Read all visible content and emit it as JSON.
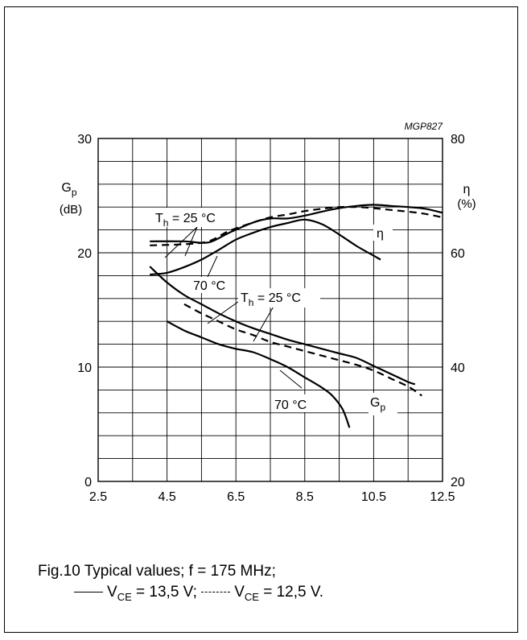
{
  "chart_data": {
    "type": "line",
    "figure_code": "MGP827",
    "grid": true,
    "x": {
      "range": [
        2.5,
        12.5
      ],
      "ticks": [
        "2.5",
        "4.5",
        "6.5",
        "8.5",
        "10.5",
        "12.5"
      ]
    },
    "y_left": {
      "label_main": "G",
      "label_sub": "p",
      "unit": "(dB)",
      "range": [
        0,
        30
      ],
      "ticks": [
        "0",
        "10",
        "20",
        "30"
      ]
    },
    "y_right": {
      "label": "η",
      "unit": "(%)",
      "range": [
        20,
        80
      ],
      "ticks": [
        "20",
        "40",
        "60",
        "80"
      ]
    },
    "series": [
      {
        "curve": "Gp",
        "style": "solid",
        "axis": "left",
        "condition": "25",
        "points": [
          [
            4.0,
            18.8
          ],
          [
            4.5,
            17.4
          ],
          [
            5.0,
            16.3
          ],
          [
            5.5,
            15.5
          ],
          [
            6.0,
            14.7
          ],
          [
            6.5,
            14.0
          ],
          [
            7.0,
            13.4
          ],
          [
            7.5,
            12.9
          ],
          [
            8.0,
            12.4
          ],
          [
            8.5,
            12.0
          ],
          [
            9.0,
            11.6
          ],
          [
            9.5,
            11.2
          ],
          [
            10.0,
            10.8
          ],
          [
            10.5,
            10.1
          ],
          [
            11.0,
            9.4
          ],
          [
            11.5,
            8.7
          ],
          [
            11.7,
            8.5
          ]
        ]
      },
      {
        "curve": "Gp",
        "style": "dashed",
        "axis": "left",
        "condition": "25",
        "points": [
          [
            5.0,
            15.5
          ],
          [
            5.5,
            14.7
          ],
          [
            6.0,
            14.0
          ],
          [
            6.5,
            13.3
          ],
          [
            7.0,
            12.8
          ],
          [
            7.5,
            12.2
          ],
          [
            8.0,
            11.8
          ],
          [
            8.5,
            11.4
          ],
          [
            9.0,
            11.0
          ],
          [
            9.5,
            10.6
          ],
          [
            10.0,
            10.2
          ],
          [
            10.5,
            9.7
          ],
          [
            11.0,
            9.0
          ],
          [
            11.5,
            8.3
          ],
          [
            11.9,
            7.5
          ]
        ]
      },
      {
        "curve": "Gp",
        "style": "solid",
        "axis": "left",
        "condition": "70",
        "points": [
          [
            4.5,
            14.0
          ],
          [
            5.0,
            13.2
          ],
          [
            5.5,
            12.6
          ],
          [
            6.0,
            12.0
          ],
          [
            6.5,
            11.6
          ],
          [
            7.0,
            11.3
          ],
          [
            7.5,
            10.7
          ],
          [
            8.0,
            10.0
          ],
          [
            8.5,
            9.1
          ],
          [
            9.0,
            8.2
          ],
          [
            9.3,
            7.5
          ],
          [
            9.6,
            6.3
          ],
          [
            9.8,
            4.7
          ]
        ]
      },
      {
        "curve": "η",
        "style": "solid",
        "axis": "right",
        "condition": "25",
        "points": [
          [
            4.0,
            62.0
          ],
          [
            5.0,
            62.0
          ],
          [
            5.7,
            61.8
          ],
          [
            6.3,
            63.5
          ],
          [
            7.0,
            65.3
          ],
          [
            7.5,
            66.0
          ],
          [
            8.0,
            66.0
          ],
          [
            8.5,
            66.5
          ],
          [
            9.0,
            67.2
          ],
          [
            9.5,
            67.8
          ],
          [
            10.0,
            68.2
          ],
          [
            10.5,
            68.4
          ],
          [
            11.0,
            68.2
          ],
          [
            11.5,
            68.0
          ],
          [
            12.0,
            67.7
          ],
          [
            12.5,
            67.0
          ]
        ]
      },
      {
        "curve": "η",
        "style": "dashed",
        "axis": "right",
        "condition": "25",
        "points": [
          [
            4.0,
            61.3
          ],
          [
            5.0,
            61.5
          ],
          [
            5.7,
            62.0
          ],
          [
            6.3,
            63.8
          ],
          [
            7.0,
            65.3
          ],
          [
            7.5,
            66.2
          ],
          [
            8.0,
            66.7
          ],
          [
            8.5,
            67.3
          ],
          [
            9.0,
            67.7
          ],
          [
            9.5,
            68.0
          ],
          [
            10.0,
            68.0
          ],
          [
            10.5,
            67.8
          ],
          [
            11.0,
            67.5
          ],
          [
            11.5,
            67.2
          ],
          [
            12.0,
            66.8
          ],
          [
            12.5,
            66.2
          ]
        ]
      },
      {
        "curve": "η",
        "style": "solid",
        "axis": "right",
        "condition": "70",
        "points": [
          [
            4.0,
            56.2
          ],
          [
            4.5,
            56.5
          ],
          [
            5.0,
            57.5
          ],
          [
            5.5,
            58.8
          ],
          [
            6.0,
            60.5
          ],
          [
            6.5,
            62.3
          ],
          [
            7.0,
            63.5
          ],
          [
            7.5,
            64.5
          ],
          [
            8.0,
            65.2
          ],
          [
            8.5,
            65.8
          ],
          [
            9.0,
            65.0
          ],
          [
            9.5,
            63.2
          ],
          [
            10.0,
            61.2
          ],
          [
            10.5,
            59.5
          ],
          [
            10.7,
            58.8
          ]
        ]
      }
    ],
    "annotations": {
      "eta_top_prefix": "T",
      "eta_top_sub": "h",
      "eta_top_suffix": " = 25 °C",
      "eta_70": "70 °C",
      "gp_top_prefix": "T",
      "gp_top_sub": "h",
      "gp_top_suffix": " = 25 °C",
      "gp_70": "70 °C",
      "eta_curve": "η",
      "gp_curve_main": "G",
      "gp_curve_sub": "p"
    }
  },
  "caption": {
    "line1": "Fig.10  Typical values; f = 175 MHz;",
    "solid_pre": "V",
    "solid_sub": "CE",
    "solid_post": " = 13,5 V;",
    "dashed_pre": "V",
    "dashed_sub": "CE",
    "dashed_post": " = 12,5 V."
  }
}
